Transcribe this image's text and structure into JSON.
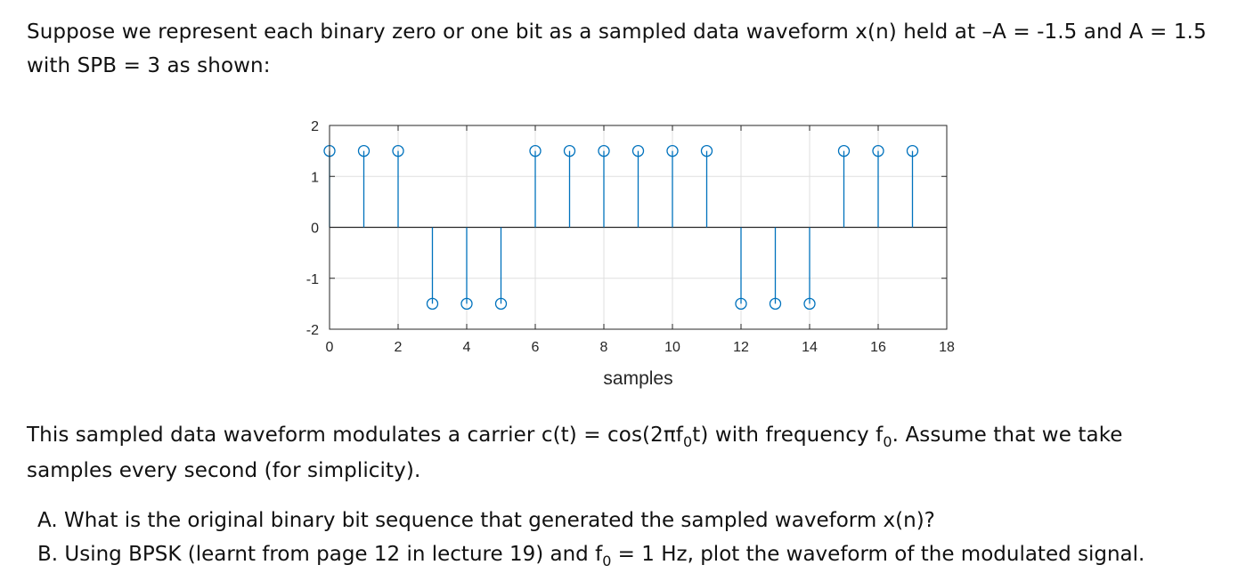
{
  "intro": {
    "line1": "Suppose we represent each binary zero or one bit as a sampled data waveform x(n) held at –A = -1.5 and A = 1.5",
    "line2": "with SPB = 3 as shown:"
  },
  "carrier": {
    "line1_a": "This sampled data waveform modulates a carrier c(t) = cos(2πf",
    "line1_sub": "0",
    "line1_b": "t) with frequency f",
    "line1_sub2": "0",
    "line1_c": ". Assume that we take",
    "line2": "samples every second (for simplicity)."
  },
  "questions": {
    "a": "A. What is the original binary bit sequence that generated the sampled waveform x(n)?",
    "b_pre": "B. Using BPSK (learnt from page 12 in lecture 19) and f",
    "b_sub": "0",
    "b_post": " = 1 Hz, plot the waveform of the modulated signal."
  },
  "chart_data": {
    "type": "stem",
    "x": [
      0,
      1,
      2,
      3,
      4,
      5,
      6,
      7,
      8,
      9,
      10,
      11,
      12,
      13,
      14,
      15,
      16,
      17
    ],
    "values": [
      1.5,
      1.5,
      1.5,
      -1.5,
      -1.5,
      -1.5,
      1.5,
      1.5,
      1.5,
      1.5,
      1.5,
      1.5,
      -1.5,
      -1.5,
      -1.5,
      1.5,
      1.5,
      1.5
    ],
    "xlabel": "samples",
    "ylabel": "",
    "xlim": [
      0,
      18
    ],
    "ylim": [
      -2,
      2
    ],
    "xticks": [
      "0",
      "2",
      "4",
      "6",
      "8",
      "10",
      "12",
      "14",
      "16",
      "18"
    ],
    "yticks": [
      "2",
      "1",
      "0",
      "-1",
      "-2"
    ],
    "grid": true,
    "color": "#0072BD"
  }
}
